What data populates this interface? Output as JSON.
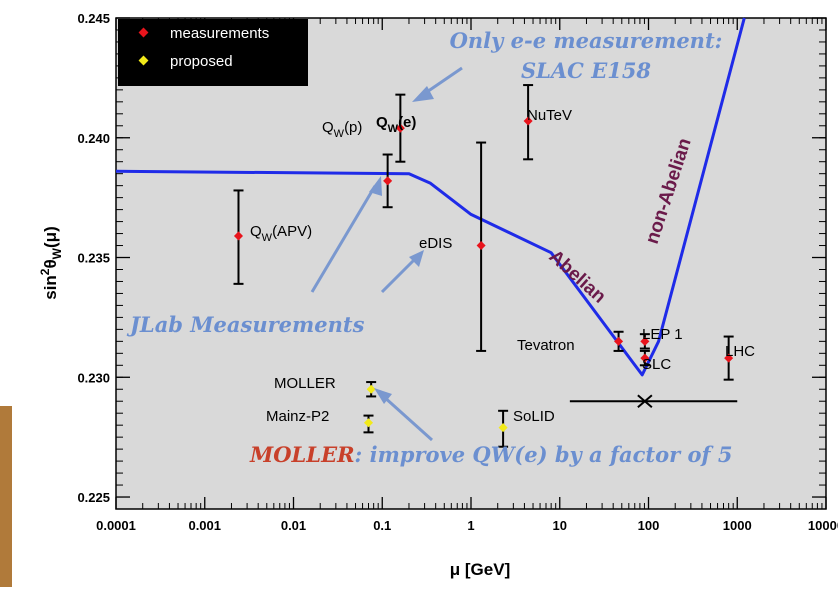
{
  "chart_data": {
    "type": "scatter",
    "title": "",
    "xlabel": "μ [GeV]",
    "ylabel": "sin²θW(μ)",
    "ylabel_parts": {
      "pre": "sin",
      "sup": "2",
      "theta": "θ",
      "sub": "W",
      "arg": "(μ)"
    },
    "xscale": "log",
    "xlim": [
      0.0001,
      10000
    ],
    "ylim": [
      0.2245,
      0.245
    ],
    "grid": false,
    "x_ticks": [
      0.0001,
      0.001,
      0.01,
      0.1,
      1,
      10,
      100,
      1000,
      10000
    ],
    "x_tick_labels": [
      "0.0001",
      "0.001",
      "0.01",
      "0.1",
      "1",
      "10",
      "100",
      "1000",
      "10000"
    ],
    "y_ticks": [
      0.225,
      0.23,
      0.235,
      0.24,
      0.245
    ],
    "y_tick_labels": [
      "0.225",
      "0.230",
      "0.235",
      "0.240",
      "0.245"
    ],
    "legend": {
      "placement": "top-left",
      "entries": [
        {
          "label": "measurements",
          "color": "#e8141c"
        },
        {
          "label": "proposed",
          "color": "#f2ea1a"
        }
      ]
    },
    "series": [
      {
        "name": "measurements",
        "color": "#e8141c",
        "points": [
          {
            "label": "QW(APV)",
            "x": 0.0024,
            "y": 0.2359,
            "yerr": [
              0.2339,
              0.2378
            ]
          },
          {
            "label": "QW(p)",
            "x": 0.115,
            "y": 0.2382,
            "yerr": [
              0.2371,
              0.2393
            ]
          },
          {
            "label": "QW(e)",
            "x": 0.16,
            "y": 0.2404,
            "yerr": [
              0.239,
              0.2418
            ]
          },
          {
            "label": "eDIS",
            "x": 1.3,
            "y": 0.2355,
            "yerr": [
              0.2311,
              0.2398
            ]
          },
          {
            "label": "NuTeV",
            "x": 4.4,
            "y": 0.2407,
            "yerr": [
              0.2391,
              0.2422
            ]
          },
          {
            "label": "Tevatron",
            "x": 46,
            "y": 0.2315,
            "yerr": [
              0.2311,
              0.2319
            ]
          },
          {
            "label": "LEP 1",
            "x": 91,
            "y": 0.2315,
            "yerr": [
              0.2312,
              0.2318
            ]
          },
          {
            "label": "SLC",
            "x": 91,
            "y": 0.2308,
            "yerr": [
              0.2305,
              0.2311
            ]
          },
          {
            "label": "LHC",
            "x": 800,
            "y": 0.2308,
            "yerr": [
              0.2299,
              0.2317
            ]
          }
        ]
      },
      {
        "name": "proposed",
        "color": "#f2ea1a",
        "points": [
          {
            "label": "MOLLER",
            "x": 0.075,
            "y": 0.2295,
            "yerr": [
              0.2292,
              0.2298
            ]
          },
          {
            "label": "Mainz-P2",
            "x": 0.07,
            "y": 0.2281,
            "yerr": [
              0.2277,
              0.2284
            ]
          },
          {
            "label": "SoLID",
            "x": 2.3,
            "y": 0.2279,
            "yerr": [
              0.2271,
              0.2286
            ]
          }
        ]
      }
    ],
    "curve": {
      "color": "#1f2be8",
      "points": [
        [
          0.0001,
          0.2386
        ],
        [
          0.2,
          0.2385
        ],
        [
          0.35,
          0.2381
        ],
        [
          1.0,
          0.2368
        ],
        [
          8.0,
          0.2352
        ],
        [
          85,
          0.2301
        ],
        [
          130,
          0.2315
        ],
        [
          1200,
          0.245
        ]
      ]
    },
    "curve_labels": [
      "Abelian",
      "non-Abelian"
    ],
    "z_marker": {
      "x": 91,
      "y": 0.229,
      "xrange": [
        13,
        1000
      ]
    },
    "annotations": {
      "top": [
        "Only e-e measurement:",
        "SLAC E158"
      ],
      "jlab": "JLab Measurements",
      "moller_prefix": "MOLLER",
      "moller_rest": ": improve QW(e) by a factor of 5"
    },
    "colors": {
      "frame_bg": "#d9d9d9",
      "annotation": "#6b8fd0",
      "moller_accent": "#c8402a",
      "curve_text": "#6a1a4a",
      "side_bar": "#b07a3a"
    }
  }
}
